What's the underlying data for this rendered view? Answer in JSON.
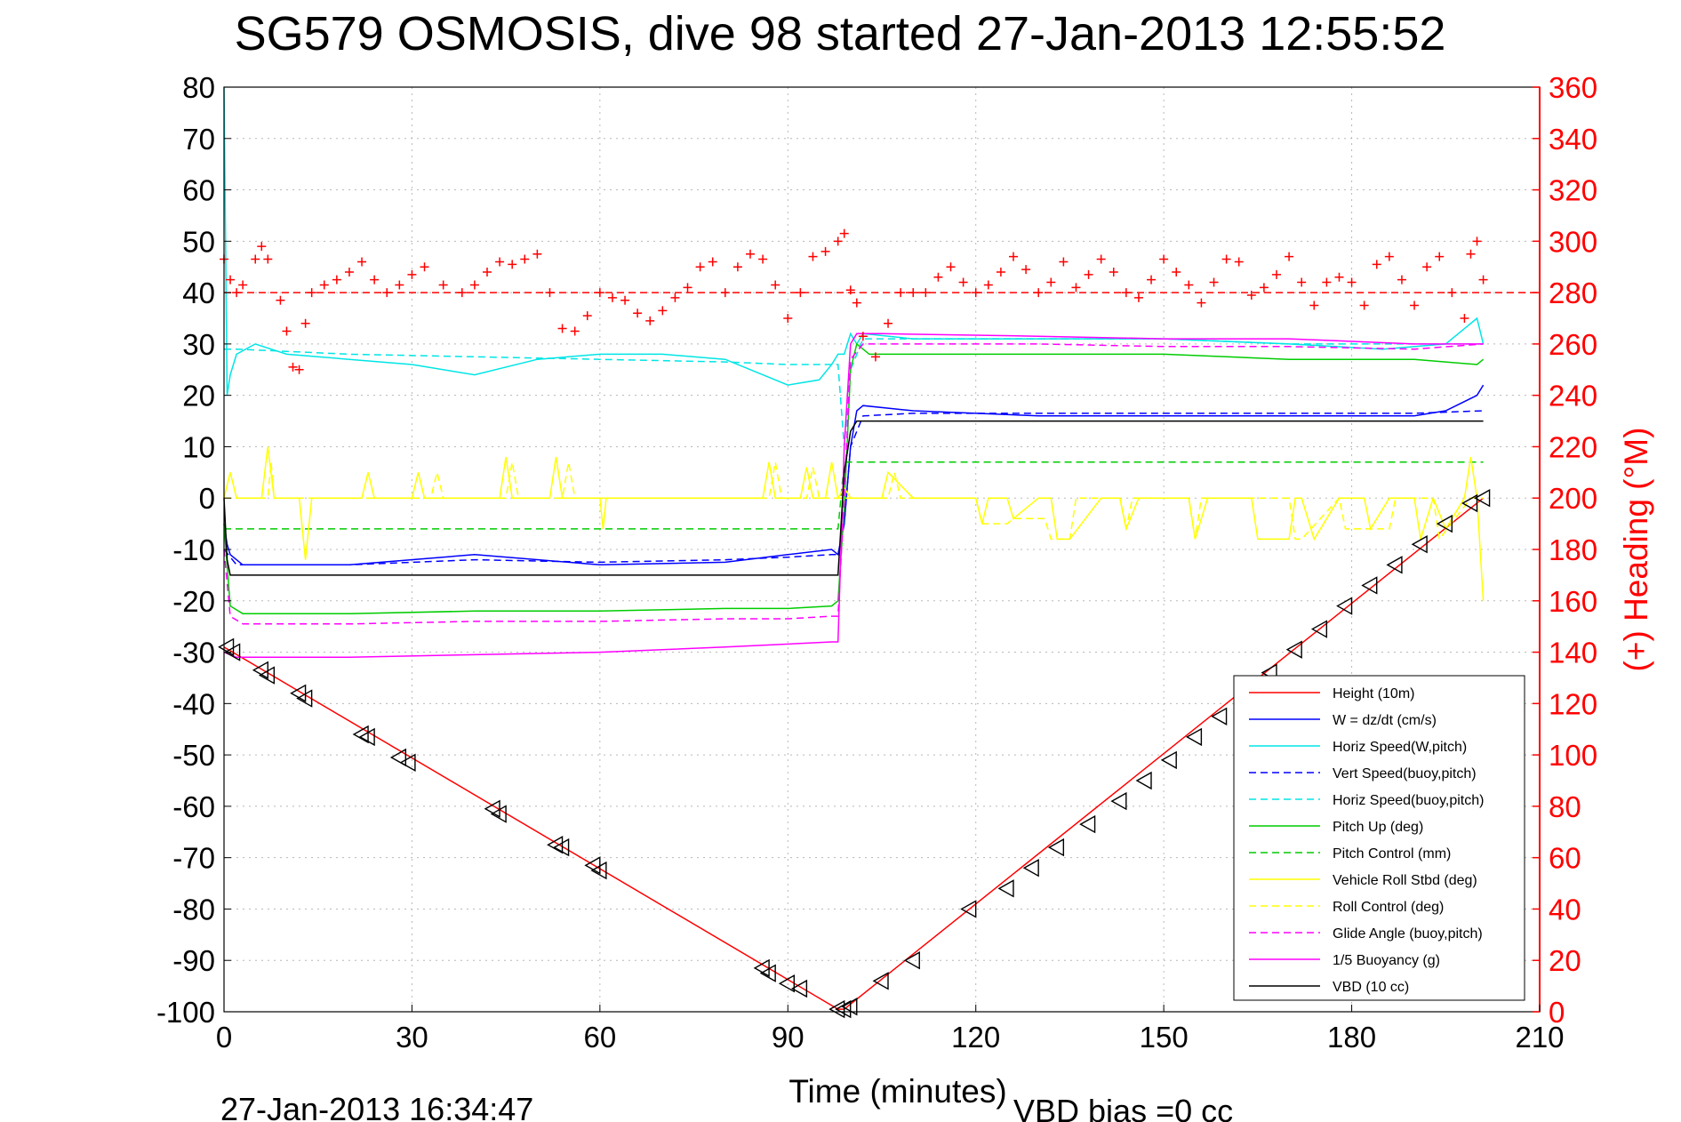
{
  "chart_data": {
    "type": "line",
    "title": "SG579 OSMOSIS, dive 98 started 27-Jan-2013 12:55:52",
    "xlabel": "Time (minutes)",
    "ylabel_left": "",
    "ylabel_right": "(+) Heading (°M)",
    "footer_left": "27-Jan-2013 16:34:47",
    "footer_right": "VBD bias =0 cc",
    "xlim": [
      0,
      210
    ],
    "ylim_left": [
      -100,
      80
    ],
    "ylim_right": [
      0,
      360
    ],
    "xticks": [
      0,
      30,
      60,
      90,
      120,
      150,
      180,
      210
    ],
    "yticks_left": [
      80,
      70,
      60,
      50,
      40,
      30,
      20,
      10,
      0,
      -10,
      -20,
      -30,
      -40,
      -50,
      -60,
      -70,
      -80,
      -90,
      -100
    ],
    "yticks_right": [
      360,
      340,
      320,
      300,
      280,
      260,
      240,
      220,
      200,
      180,
      160,
      140,
      120,
      100,
      80,
      60,
      40,
      20,
      0
    ],
    "grid": true,
    "legend_position": "bottom-right",
    "series": [
      {
        "name": "Height (10m)",
        "color": "#ff0000",
        "style": "solid",
        "x": [
          0,
          98,
          99,
          201
        ],
        "y": [
          -29,
          -99.5,
          -99.5,
          0
        ]
      },
      {
        "name": "W = dz/dt (cm/s)",
        "color": "#0000ff",
        "style": "solid",
        "x": [
          0,
          0.5,
          1,
          3,
          20,
          40,
          60,
          80,
          90,
          97,
          98,
          99,
          100,
          101,
          102,
          110,
          130,
          150,
          170,
          190,
          195,
          200,
          201
        ],
        "y": [
          -5,
          -9,
          -11,
          -13,
          -13,
          -11,
          -13,
          -12.5,
          -11,
          -10,
          -11,
          -5,
          10,
          17,
          18,
          17,
          16,
          16,
          16,
          16,
          17,
          20,
          22
        ]
      },
      {
        "name": "Horiz Speed(W,pitch)",
        "color": "#00e5e5",
        "style": "solid",
        "x": [
          0,
          0.5,
          1,
          2,
          5,
          10,
          20,
          30,
          40,
          50,
          60,
          70,
          80,
          90,
          95,
          97,
          98,
          99,
          100,
          101,
          102,
          110,
          130,
          150,
          170,
          185,
          195,
          200,
          201
        ],
        "y": [
          80,
          20,
          24,
          28,
          30,
          28,
          27,
          26,
          24,
          27,
          28,
          28,
          27,
          22,
          23,
          26,
          28,
          28,
          32,
          30,
          32,
          31,
          31,
          31,
          30,
          29,
          30,
          35,
          30
        ]
      },
      {
        "name": "Vert Speed(buoy,pitch)",
        "color": "#0000ff",
        "style": "dashed",
        "x": [
          0,
          2,
          20,
          40,
          60,
          80,
          90,
          97,
          98,
          99,
          100,
          102,
          110,
          130,
          150,
          170,
          190,
          201
        ],
        "y": [
          -10,
          -13,
          -13,
          -12,
          -12.5,
          -12,
          -11.5,
          -11,
          -11,
          -5,
          10,
          16,
          16.5,
          16.5,
          16.5,
          16.5,
          16.5,
          17
        ]
      },
      {
        "name": "Horiz Speed(buoy,pitch)",
        "color": "#00e5e5",
        "style": "dashed",
        "x": [
          0,
          2,
          20,
          40,
          60,
          80,
          90,
          97,
          98,
          99,
          100,
          102,
          110,
          130,
          150,
          170,
          190,
          201
        ],
        "y": [
          29,
          29,
          28,
          27.5,
          27,
          26.5,
          26,
          26,
          26,
          10,
          25,
          31,
          31,
          31,
          31,
          30,
          30,
          30
        ]
      },
      {
        "name": "Pitch Up (deg)",
        "color": "#00cc00",
        "style": "solid",
        "x": [
          0,
          1,
          3,
          20,
          40,
          60,
          80,
          90,
          97,
          98,
          99,
          100,
          101,
          103,
          110,
          130,
          150,
          170,
          190,
          200,
          201
        ],
        "y": [
          -5,
          -21,
          -22.5,
          -22.5,
          -22,
          -22,
          -21.5,
          -21.5,
          -21,
          -20,
          -2,
          25,
          30,
          28,
          28,
          28,
          28,
          27,
          27,
          26,
          27
        ]
      },
      {
        "name": "Pitch Control (mm)",
        "color": "#00cc00",
        "style": "dashed",
        "x": [
          0,
          0.5,
          98,
          99,
          100,
          201
        ],
        "y": [
          -6,
          -6,
          -6,
          7,
          7,
          7
        ]
      },
      {
        "name": "Vehicle Roll Stbd (deg)",
        "color": "#ffff00",
        "style": "solid",
        "x": [
          0,
          1,
          2,
          6,
          7,
          8,
          12,
          13,
          14,
          20,
          22,
          23,
          24,
          26,
          28,
          30,
          31,
          32,
          33,
          34,
          44,
          45,
          46,
          47,
          48,
          52,
          53,
          54,
          55,
          56,
          60,
          60.5,
          61,
          62,
          86,
          87,
          88,
          89,
          90,
          92,
          93,
          94,
          96,
          97,
          98,
          99,
          100,
          101,
          105,
          106,
          110,
          115,
          120,
          121,
          122,
          125,
          126,
          130,
          132,
          133,
          135,
          140,
          143,
          144,
          146,
          150,
          154,
          155,
          157,
          162,
          164,
          165,
          170,
          171,
          172,
          174,
          178,
          180,
          182,
          183,
          186,
          187,
          190,
          191,
          193,
          195,
          198,
          199,
          200,
          201
        ],
        "y": [
          0,
          5,
          0,
          0,
          10,
          0,
          0,
          -12,
          0,
          0,
          0,
          5,
          0,
          0,
          0,
          0,
          5,
          0,
          0,
          0,
          0,
          8,
          0,
          0,
          0,
          0,
          8,
          0,
          0,
          0,
          0,
          -6,
          0,
          0,
          0,
          7,
          0,
          0,
          0,
          0,
          6,
          0,
          0,
          7,
          0,
          2,
          0,
          0,
          0,
          5,
          0,
          0,
          0,
          -5,
          0,
          0,
          -4,
          0,
          0,
          -8,
          -8,
          0,
          0,
          -6,
          0,
          0,
          0,
          -8,
          0,
          0,
          0,
          -8,
          -8,
          0,
          0,
          -8,
          0,
          0,
          0,
          -6,
          0,
          0,
          0,
          -8,
          0,
          -6,
          0,
          8,
          0,
          -20
        ]
      },
      {
        "name": "Roll Control (deg)",
        "color": "#ffff00",
        "style": "dashed",
        "x": [
          0,
          7,
          7.5,
          8,
          33,
          34,
          35,
          45,
          46,
          47,
          54,
          55,
          56,
          87,
          88,
          89,
          93,
          94,
          95,
          97,
          98,
          99,
          106,
          107,
          108,
          120,
          121,
          125,
          126,
          131,
          132,
          135,
          136,
          143,
          144,
          145,
          154,
          155,
          156,
          170,
          171,
          172,
          178,
          179,
          186,
          187,
          193,
          194,
          199,
          201
        ],
        "y": [
          0,
          0,
          7,
          0,
          0,
          5,
          0,
          0,
          7,
          0,
          0,
          7,
          0,
          0,
          7,
          0,
          0,
          6,
          0,
          0,
          0,
          0,
          0,
          5,
          0,
          0,
          -5,
          -5,
          -4,
          -4,
          -8,
          -8,
          0,
          0,
          -6,
          0,
          0,
          -8,
          0,
          0,
          -8,
          -8,
          0,
          -6,
          -6,
          0,
          0,
          -8,
          0,
          0
        ]
      },
      {
        "name": "Glide Angle (buoy,pitch)",
        "color": "#ff00ff",
        "style": "dashed",
        "x": [
          0,
          1,
          3,
          20,
          40,
          60,
          80,
          90,
          97,
          98,
          99,
          100,
          102,
          110,
          130,
          150,
          170,
          190,
          201
        ],
        "y": [
          -10,
          -23,
          -24.5,
          -24.5,
          -24,
          -24,
          -23.5,
          -23.5,
          -23,
          -23,
          0,
          27,
          30,
          30,
          30,
          29.5,
          29.5,
          29,
          30
        ]
      },
      {
        "name": "1/5 Buoyancy (g)",
        "color": "#ff00ff",
        "style": "solid",
        "x": [
          0,
          2,
          20,
          40,
          60,
          80,
          97,
          98,
          99,
          100,
          101,
          105,
          130,
          150,
          170,
          190,
          201
        ],
        "y": [
          -30,
          -31,
          -31,
          -30.5,
          -30,
          -29,
          -28,
          -28,
          10,
          30,
          32,
          32,
          31.5,
          31,
          31,
          30,
          30
        ]
      },
      {
        "name": "VBD (10 cc)",
        "color": "#000000",
        "style": "solid",
        "x": [
          0,
          0.5,
          1,
          98,
          99,
          100,
          101,
          201
        ],
        "y": [
          0,
          -12,
          -15,
          -15,
          5,
          13,
          15,
          15
        ]
      }
    ],
    "heading": {
      "name": "Heading (°M)",
      "color": "#ff0000",
      "marker": "+",
      "axis": "right",
      "mean": 280,
      "x": [
        0,
        1,
        2,
        3,
        5,
        6,
        7,
        9,
        10,
        11,
        12,
        13,
        14,
        16,
        18,
        20,
        22,
        24,
        26,
        28,
        30,
        32,
        35,
        38,
        40,
        42,
        44,
        46,
        48,
        50,
        52,
        54,
        56,
        58,
        60,
        62,
        64,
        66,
        68,
        70,
        72,
        74,
        76,
        78,
        80,
        82,
        84,
        86,
        88,
        90,
        92,
        94,
        96,
        98,
        99,
        100,
        101,
        102,
        104,
        106,
        108,
        110,
        112,
        114,
        116,
        118,
        120,
        122,
        124,
        126,
        128,
        130,
        132,
        134,
        136,
        138,
        140,
        142,
        144,
        146,
        148,
        150,
        152,
        154,
        156,
        158,
        160,
        162,
        164,
        166,
        168,
        170,
        172,
        174,
        176,
        178,
        180,
        182,
        184,
        186,
        188,
        190,
        192,
        194,
        196,
        198,
        199,
        200,
        201
      ],
      "y": [
        293,
        285,
        280,
        283,
        293,
        298,
        293,
        277,
        265,
        251,
        250,
        268,
        280,
        283,
        285,
        288,
        292,
        285,
        280,
        283,
        287,
        290,
        283,
        280,
        283,
        288,
        292,
        291,
        293,
        295,
        280,
        266,
        265,
        271,
        280,
        278,
        277,
        272,
        269,
        273,
        278,
        282,
        290,
        292,
        280,
        290,
        295,
        293,
        283,
        270,
        280,
        294,
        296,
        300,
        303,
        281,
        276,
        263,
        255,
        268,
        280,
        280,
        280,
        286,
        290,
        284,
        280,
        283,
        288,
        294,
        289,
        280,
        284,
        292,
        282,
        287,
        293,
        288,
        280,
        278,
        285,
        293,
        288,
        283,
        276,
        284,
        293,
        292,
        279,
        282,
        287,
        294,
        284,
        275,
        284,
        286,
        284,
        275,
        291,
        294,
        285,
        275,
        290,
        294,
        280,
        270,
        295,
        300,
        285
      ]
    },
    "markers": {
      "symbol": "◁",
      "color": "#000000",
      "x": [
        0.5,
        1.5,
        6,
        7,
        12,
        13,
        22,
        23,
        28,
        29.5,
        43,
        44,
        53,
        54,
        59,
        60,
        86,
        87,
        90,
        92,
        98,
        99,
        100,
        105,
        110,
        119,
        125,
        129,
        133,
        138,
        143,
        147,
        151,
        155,
        159,
        163,
        167,
        171,
        175,
        179,
        183,
        187,
        191,
        195,
        199,
        201
      ],
      "y": [
        -29,
        -30,
        -33.5,
        -34.5,
        -38,
        -39,
        -46,
        -46.5,
        -50.5,
        -51.5,
        -60.5,
        -61.5,
        -67.5,
        -68,
        -71.5,
        -72.5,
        -91.5,
        -92.5,
        -94.5,
        -95.5,
        -99.5,
        -99.5,
        -99,
        -94,
        -90,
        -80,
        -76,
        -72,
        -68,
        -63.5,
        -59,
        -55,
        -51,
        -46.5,
        -42.5,
        -38,
        -34,
        -29.5,
        -25.5,
        -21,
        -17,
        -13,
        -9,
        -5,
        -1,
        0
      ]
    }
  }
}
